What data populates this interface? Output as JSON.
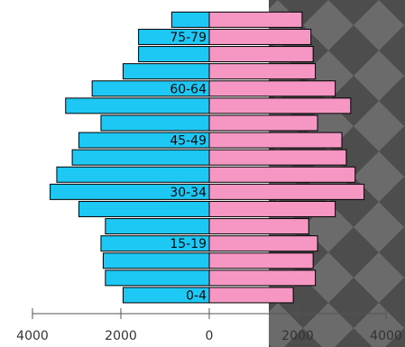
{
  "chart_data": {
    "type": "bar",
    "orientation": "horizontal",
    "categories": [
      "0-4",
      "5-9",
      "10-14",
      "15-19",
      "20-24",
      "25-29",
      "30-34",
      "35-39",
      "40-44",
      "45-49",
      "50-54",
      "55-59",
      "60-64",
      "65-69",
      "70-74",
      "75-79",
      "80-84"
    ],
    "series": [
      {
        "color": "#1ec8f5",
        "values": [
          1950,
          2350,
          2400,
          2450,
          2350,
          2950,
          3600,
          3450,
          3100,
          2950,
          2450,
          3250,
          2650,
          1950,
          1600,
          1600,
          850
        ]
      },
      {
        "color": "#f596c3",
        "values": [
          1900,
          2400,
          2350,
          2450,
          2250,
          2850,
          3500,
          3300,
          3100,
          3000,
          2450,
          3200,
          2850,
          2400,
          2350,
          2300,
          2100
        ]
      }
    ],
    "category_labels_shown": [
      "0-4",
      "15-19",
      "30-34",
      "45-49",
      "60-64",
      "75-79"
    ],
    "x_ticks": [
      {
        "value": -4000,
        "label": "4000"
      },
      {
        "value": -2000,
        "label": "2000"
      },
      {
        "value": 0,
        "label": "0"
      },
      {
        "value": 2000,
        "label": "2000"
      },
      {
        "value": 4000,
        "label": "4000"
      }
    ],
    "xlim": [
      -4000,
      4000
    ],
    "grid": false,
    "legend": "none",
    "background_right_half": "checkerboard-gray"
  }
}
